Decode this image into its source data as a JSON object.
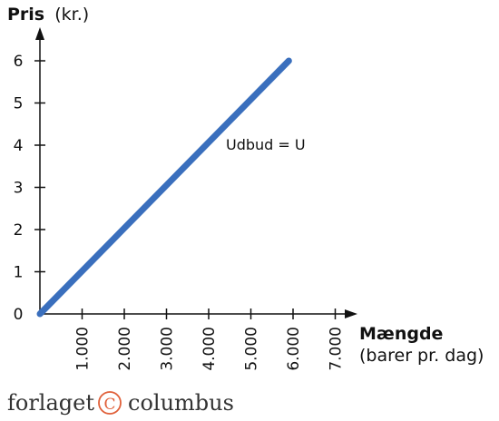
{
  "chart_data": {
    "type": "line",
    "y_title": {
      "bold": "Pris",
      "rest": "(kr.)"
    },
    "x_title": {
      "bold": "Mængde",
      "unit": "(barer pr. dag)"
    },
    "x_ticks": [
      "1.000",
      "2.000",
      "3.000",
      "4.000",
      "5.000",
      "6.000",
      "7.000"
    ],
    "y_ticks": [
      "1",
      "2",
      "3",
      "4",
      "5",
      "6"
    ],
    "y_origin_label": "0",
    "xlim": [
      0,
      7500
    ],
    "ylim": [
      0,
      6.8
    ],
    "series": [
      {
        "name": "Udbud = U",
        "color": "#3a6fbd",
        "points": [
          [
            0,
            0
          ],
          [
            5900,
            6
          ]
        ]
      }
    ],
    "grid": false
  },
  "footer": {
    "brand_left": "forlaget",
    "brand_right": "columbus",
    "brand_mark": "C"
  }
}
